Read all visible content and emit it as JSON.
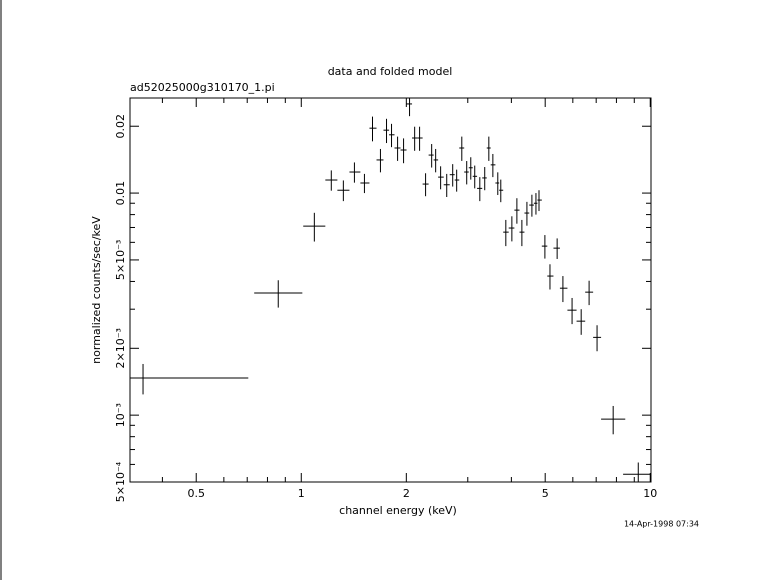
{
  "chart_data": {
    "type": "errorbar",
    "title": "data and folded model",
    "subtitle": "ad52025000g310170_1.pi",
    "xlabel": "channel energy (keV)",
    "ylabel": "normalized counts/sec/keV",
    "annotation": "14-Apr-1998 07:34",
    "xlog": true,
    "ylog": true,
    "color": "#000000",
    "xlim": [
      0.323,
      10.05
    ],
    "ylim": [
      0.0005,
      0.0268
    ],
    "xticks": [
      0.5,
      1,
      2,
      5,
      10
    ],
    "yticks": [
      {
        "value": 0.02,
        "label": "0.02"
      },
      {
        "value": 0.01,
        "label": "0.01"
      },
      {
        "value": 0.005,
        "label": "5×10⁻³"
      },
      {
        "value": 0.002,
        "label": "2×10⁻³"
      },
      {
        "value": 0.001,
        "label": "10⁻³"
      },
      {
        "value": 0.0005,
        "label": "5×10⁻⁴"
      }
    ],
    "xminorticks": [
      0.4,
      0.6,
      0.7,
      0.8,
      0.9,
      3,
      4,
      6,
      7,
      8,
      9
    ],
    "yminorticks": [
      0.0006,
      0.0007,
      0.0008,
      0.0009,
      0.003,
      0.004,
      0.006,
      0.007,
      0.008,
      0.009
    ],
    "x": [
      0.352,
      0.859,
      1.09,
      1.219,
      1.32,
      1.42,
      1.517,
      1.6,
      1.686,
      1.755,
      1.814,
      1.888,
      1.964,
      2.043,
      2.113,
      2.183,
      2.271,
      2.364,
      2.427,
      2.508,
      2.611,
      2.716,
      2.788,
      2.884,
      2.979,
      3.06,
      3.141,
      3.248,
      3.355,
      3.447,
      3.54,
      3.657,
      3.73,
      3.856,
      4.013,
      4.148,
      4.287,
      4.432,
      4.58,
      4.704,
      4.8,
      4.99,
      5.16,
      5.41,
      5.62,
      5.97,
      6.34,
      6.68,
      7.04,
      7.83,
      9.24
    ],
    "x_lo": [
      0.323,
      0.733,
      1.013,
      1.172,
      1.269,
      1.374,
      1.477,
      1.568,
      1.643,
      1.72,
      1.785,
      1.85,
      1.925,
      2.003,
      2.077,
      2.148,
      2.227,
      2.317,
      2.395,
      2.467,
      2.56,
      2.663,
      2.752,
      2.836,
      2.93,
      3.02,
      3.1,
      3.19,
      3.3,
      3.4,
      3.49,
      3.6,
      3.69,
      3.79,
      3.93,
      4.08,
      4.22,
      4.36,
      4.5,
      4.64,
      4.75,
      4.89,
      5.07,
      5.28,
      5.51,
      5.79,
      6.15,
      6.51,
      6.86,
      7.23,
      8.36
    ],
    "x_hi": [
      0.705,
      1.007,
      1.172,
      1.269,
      1.374,
      1.477,
      1.568,
      1.643,
      1.72,
      1.785,
      1.85,
      1.925,
      2.003,
      2.077,
      2.148,
      2.227,
      2.317,
      2.395,
      2.467,
      2.56,
      2.663,
      2.752,
      2.836,
      2.93,
      3.02,
      3.1,
      3.19,
      3.3,
      3.4,
      3.49,
      3.6,
      3.69,
      3.79,
      3.93,
      4.08,
      4.22,
      4.36,
      4.5,
      4.64,
      4.75,
      4.89,
      5.07,
      5.28,
      5.51,
      5.79,
      6.15,
      6.51,
      6.86,
      7.23,
      8.48,
      10.14
    ],
    "values": [
      0.00147,
      0.00355,
      0.0071,
      0.01145,
      0.0103,
      0.01244,
      0.0111,
      0.0196,
      0.0141,
      0.0192,
      0.0183,
      0.01596,
      0.01563,
      0.0252,
      0.0177,
      0.0177,
      0.01098,
      0.01483,
      0.0141,
      0.0118,
      0.0109,
      0.0121,
      0.01145,
      0.01596,
      0.01244,
      0.013,
      0.0119,
      0.0105,
      0.0117,
      0.01596,
      0.0134,
      0.0111,
      0.0103,
      0.00667,
      0.00696,
      0.00838,
      0.00667,
      0.00813,
      0.00883,
      0.009,
      0.0093,
      0.00577,
      0.00423,
      0.00565,
      0.00373,
      0.00297,
      0.00265,
      0.00358,
      0.00224,
      0.00096,
      0.000542
    ],
    "errors": [
      0.00023,
      0.0005,
      0.00105,
      0.0012,
      0.0011,
      0.0013,
      0.0011,
      0.0025,
      0.0017,
      0.0024,
      0.0022,
      0.002,
      0.002,
      0.003,
      0.0022,
      0.0022,
      0.0013,
      0.0018,
      0.0017,
      0.0014,
      0.0013,
      0.0014,
      0.0013,
      0.002,
      0.0015,
      0.0015,
      0.0014,
      0.0013,
      0.0014,
      0.002,
      0.0016,
      0.0013,
      0.0012,
      0.0009,
      0.0009,
      0.0011,
      0.0009,
      0.001,
      0.001,
      0.001,
      0.001,
      0.0007,
      0.00055,
      0.0006,
      0.0005,
      0.0004,
      0.00035,
      0.00045,
      0.0003,
      0.00014,
      7e-05
    ]
  }
}
